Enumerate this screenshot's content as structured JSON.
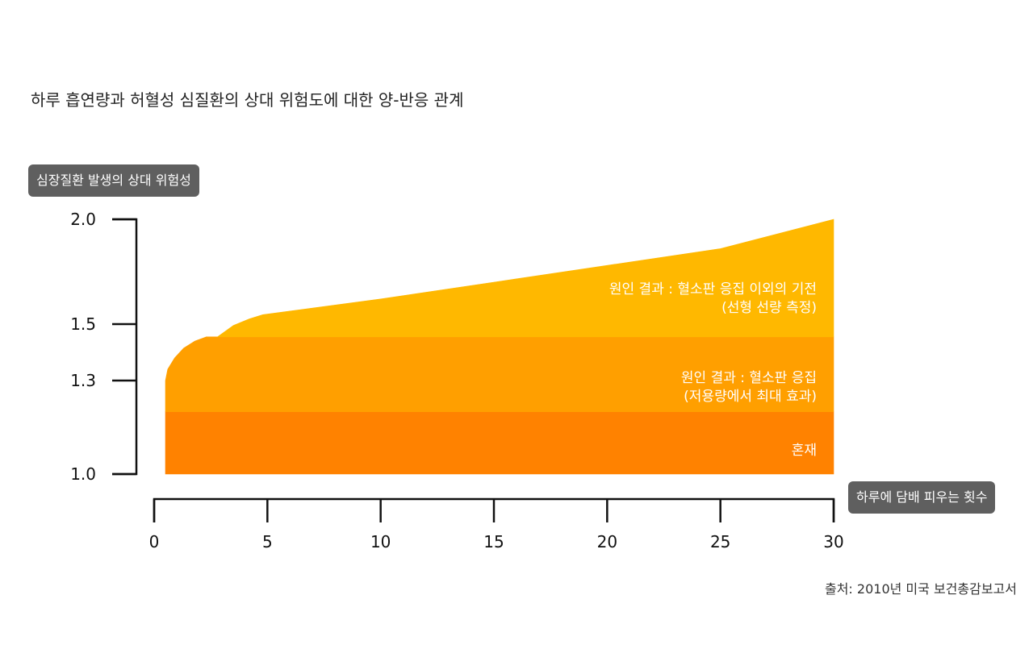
{
  "title": "하루 흡연량과 허혈성 심질환의 상대 위험도에 대한 양-반응 관계",
  "source": "출처: 2010년 미국 보건총감보고서",
  "chart_data": {
    "type": "area",
    "title": "하루 흡연량과 허혈성 심질환의 상대 위험도에 대한 양-반응 관계",
    "ylabel": "심장질환 발생의 상대 위험성",
    "xlabel": "하루에 담배 피우는 횟수",
    "x_ticks": [
      0,
      5,
      10,
      15,
      20,
      25,
      30
    ],
    "y_ticks": [
      1.0,
      1.3,
      1.5,
      2.0
    ],
    "colors": {
      "confounding": "#FF8200",
      "max_effect": "#FF9F00",
      "linear": "#FFB800"
    },
    "bands": [
      {
        "name": "혼재",
        "lines": [
          "혼재"
        ],
        "x": [
          0.5,
          30
        ],
        "lower": [
          1.0,
          1.0
        ],
        "upper": [
          1.2,
          1.2
        ]
      },
      {
        "name": "원인 결과 : 혈소판 응집 (저용량에서 최대 효과)",
        "lines": [
          "원인 결과 : 혈소판 응집",
          "(저용량에서 최대 효과)"
        ],
        "x": [
          0.5,
          0.6,
          0.9,
          1.3,
          1.8,
          2.3,
          2.8,
          30
        ],
        "lower": [
          1.2,
          1.2,
          1.2,
          1.2,
          1.2,
          1.2,
          1.2,
          1.2
        ],
        "upper": [
          1.3,
          1.34,
          1.38,
          1.415,
          1.44,
          1.455,
          1.455,
          1.455
        ]
      },
      {
        "name": "원인 결과 : 혈소판 응집 이외의 기전 (선형 선량 측정)",
        "lines": [
          "원인 결과 : 혈소판 응집 이외의 기전",
          "(선형 선량 측정)"
        ],
        "x": [
          2.8,
          3.5,
          4.2,
          4.8,
          10,
          15,
          20,
          25,
          30
        ],
        "lower": [
          1.455,
          1.455,
          1.455,
          1.455,
          1.455,
          1.455,
          1.455,
          1.455,
          1.455
        ],
        "upper": [
          1.455,
          1.495,
          1.525,
          1.545,
          1.62,
          1.7,
          1.78,
          1.86,
          2.0
        ]
      }
    ]
  }
}
